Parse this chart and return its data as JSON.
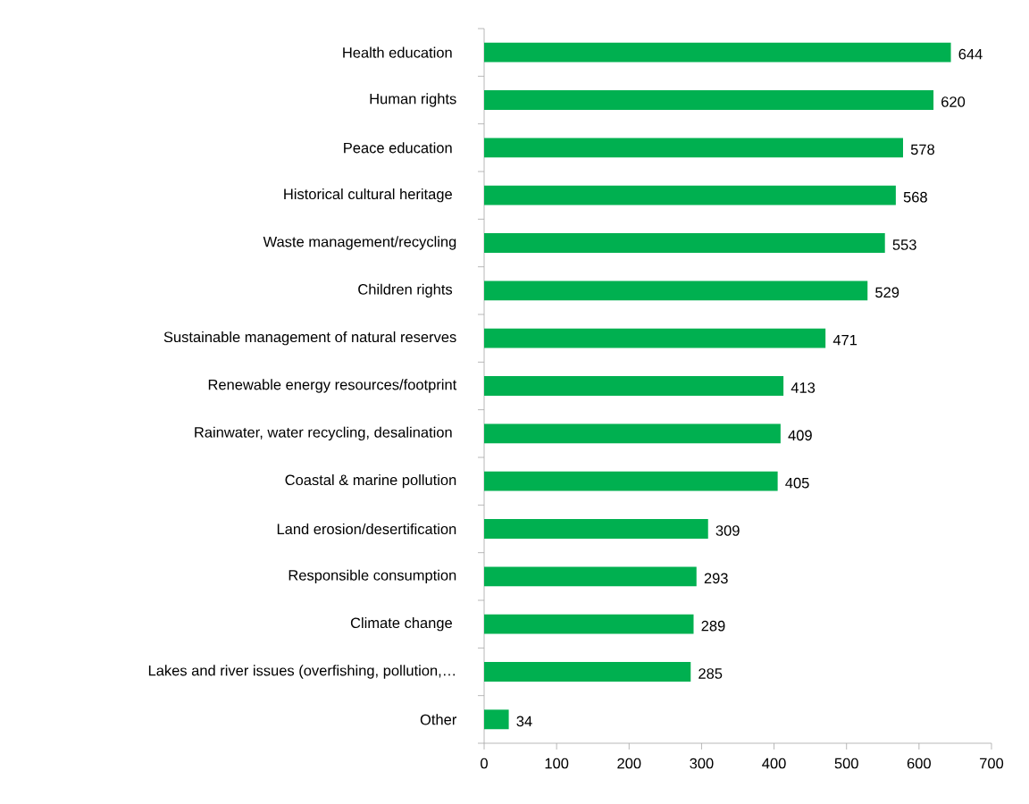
{
  "chart_data": {
    "type": "bar",
    "orientation": "horizontal",
    "categories": [
      "Health education ",
      "Human rights",
      "Peace education ",
      "Historical cultural heritage ",
      "Waste management/recycling",
      "Children rights ",
      "Sustainable management of natural reserves",
      "Renewable energy resources/footprint",
      "Rainwater, water recycling, desalination ",
      "Coastal & marine pollution",
      "Land erosion/desertification",
      "Responsible consumption",
      "Climate change ",
      "Lakes and river issues (overfishing, pollution,…",
      "Other"
    ],
    "values": [
      644,
      620,
      578,
      568,
      553,
      529,
      471,
      413,
      409,
      405,
      309,
      293,
      289,
      285,
      34
    ],
    "color": "#00b050",
    "data_labels": true,
    "xlim": [
      0,
      700
    ],
    "xticks": [
      0,
      100,
      200,
      300,
      400,
      500,
      600,
      700
    ]
  }
}
